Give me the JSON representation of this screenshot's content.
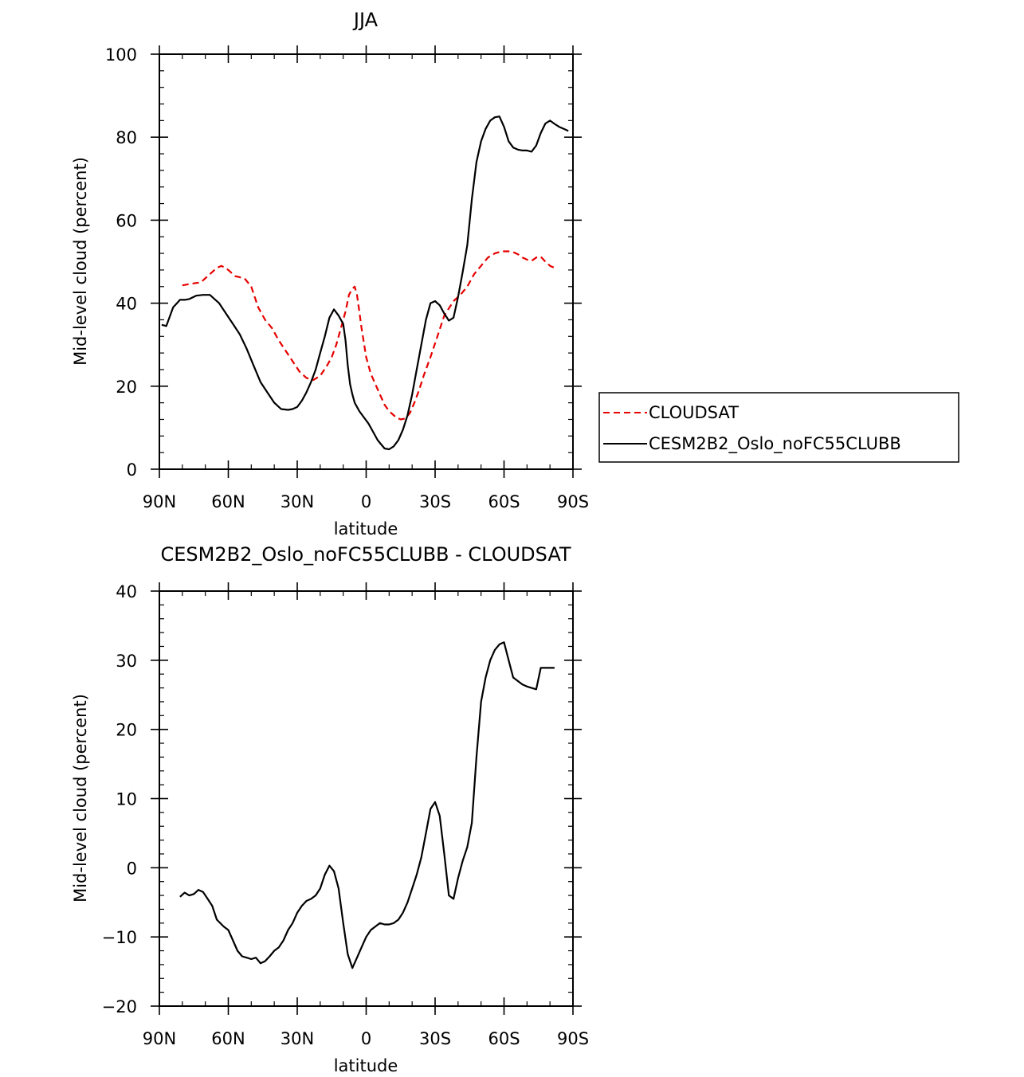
{
  "chart_data": [
    {
      "type": "line",
      "title": "JJA",
      "xlabel": "latitude",
      "ylabel": "Mid-level cloud (percent)",
      "xlim": [
        90,
        -90
      ],
      "ylim": [
        0,
        100
      ],
      "x_ticks": [
        90,
        60,
        30,
        0,
        -30,
        -60,
        -90
      ],
      "x_tick_labels": [
        "90N",
        "60N",
        "30N",
        "0",
        "30S",
        "60S",
        "90S"
      ],
      "y_ticks": [
        0,
        20,
        40,
        60,
        80,
        100
      ],
      "y_tick_labels": [
        "0",
        "20",
        "40",
        "60",
        "80",
        "100"
      ],
      "grid": false,
      "legend_position": "right",
      "series": [
        {
          "name": "CLOUDSAT",
          "color": "#e60000",
          "dash": "dashed",
          "x": [
            80,
            76,
            72,
            68,
            65,
            63,
            60,
            57,
            53,
            50,
            47,
            44,
            41,
            38,
            35,
            32,
            29,
            26,
            23,
            20,
            17,
            15,
            13,
            11,
            9,
            7.5,
            6,
            5,
            4,
            3,
            2,
            0,
            -2,
            -4,
            -6,
            -8,
            -10,
            -13,
            -15,
            -17,
            -19,
            -21,
            -23,
            -25,
            -28,
            -31,
            -34,
            -38,
            -41,
            -44,
            -47,
            -50,
            -53,
            -56,
            -59,
            -62,
            -64,
            -66,
            -68,
            -70,
            -72,
            -74,
            -76,
            -78,
            -80,
            -82
          ],
          "y": [
            44.3,
            44.7,
            45.0,
            47.0,
            48.5,
            49.0,
            48.0,
            46.5,
            46.0,
            44.0,
            39.0,
            36.0,
            34.0,
            31.0,
            28.5,
            26.0,
            23.5,
            22.0,
            21.5,
            22.5,
            25.0,
            27.0,
            30.0,
            34.0,
            38.0,
            42.0,
            43.5,
            44.0,
            42.0,
            38.0,
            34.0,
            27.0,
            23.0,
            20.5,
            18.0,
            15.5,
            14.0,
            12.5,
            12.0,
            12.2,
            13.5,
            16.0,
            19.0,
            22.5,
            27.0,
            32.0,
            37.0,
            40.5,
            42.0,
            44.0,
            47.0,
            49.0,
            51.0,
            52.0,
            52.5,
            52.5,
            52.3,
            51.8,
            51.0,
            50.5,
            50.2,
            51.0,
            51.2,
            50.0,
            49.0,
            48.5
          ]
        },
        {
          "name": "CESM2B2_Oslo_noFC55CLUBB",
          "color": "#000000",
          "dash": "solid",
          "x": [
            89,
            87,
            84,
            81,
            79,
            77,
            74,
            71,
            68,
            66,
            64,
            61,
            58,
            55,
            52,
            49,
            46,
            43,
            40,
            37,
            34,
            32,
            30,
            28,
            26,
            24,
            22,
            20,
            18,
            16,
            14,
            12,
            10,
            9,
            8,
            7,
            6,
            5,
            3,
            1,
            -1,
            -3,
            -5,
            -8,
            -10,
            -12,
            -14,
            -16,
            -18,
            -20,
            -22,
            -24,
            -26,
            -28,
            -30,
            -32,
            -34,
            -36,
            -38,
            -40,
            -42,
            -44,
            -46,
            -48,
            -50,
            -52,
            -54,
            -56,
            -58,
            -60,
            -62,
            -64,
            -66,
            -68,
            -70,
            -72,
            -74,
            -76,
            -78,
            -80,
            -82,
            -84,
            -86,
            -88
          ],
          "y": [
            34.8,
            34.5,
            39.0,
            40.8,
            40.8,
            41.0,
            41.8,
            42.0,
            42.0,
            41.0,
            40.0,
            37.5,
            35.0,
            32.5,
            29.0,
            25.0,
            21.0,
            18.5,
            16.0,
            14.5,
            14.3,
            14.5,
            15.0,
            16.5,
            18.5,
            21.0,
            24.0,
            28.0,
            32.0,
            36.5,
            38.5,
            37.0,
            35.0,
            31.0,
            25.0,
            20.5,
            18.0,
            16.0,
            14.0,
            12.5,
            11.0,
            9.0,
            7.0,
            5.0,
            4.8,
            5.5,
            7.0,
            9.5,
            13.0,
            18.0,
            24.0,
            30.0,
            36.0,
            40.0,
            40.5,
            39.5,
            37.5,
            35.8,
            36.5,
            41.5,
            47.5,
            54.0,
            65.0,
            74.0,
            79.0,
            82.0,
            84.0,
            84.8,
            85.0,
            82.5,
            79.0,
            77.5,
            77.0,
            76.8,
            76.8,
            76.5,
            78.0,
            81.0,
            83.3,
            84.0,
            83.2,
            82.5,
            82.0,
            81.5
          ]
        }
      ]
    },
    {
      "type": "line",
      "title": "CESM2B2_Oslo_noFC55CLUBB - CLOUDSAT",
      "xlabel": "latitude",
      "ylabel": "Mid-level cloud (percent)",
      "xlim": [
        90,
        -90
      ],
      "ylim": [
        -20,
        40
      ],
      "x_ticks": [
        90,
        60,
        30,
        0,
        -30,
        -60,
        -90
      ],
      "x_tick_labels": [
        "90N",
        "60N",
        "30N",
        "0",
        "30S",
        "60S",
        "90S"
      ],
      "y_ticks": [
        -20,
        -10,
        0,
        10,
        20,
        30,
        40
      ],
      "y_tick_labels": [
        "−20",
        "−10",
        "0",
        "10",
        "20",
        "30",
        "40"
      ],
      "grid": false,
      "series": [
        {
          "color": "#000000",
          "dash": "solid",
          "x": [
            81,
            79,
            77,
            75,
            73,
            71,
            69,
            67,
            65,
            62,
            60,
            58,
            56,
            54,
            52,
            50,
            48,
            46,
            44,
            42,
            40,
            38,
            36,
            34,
            32,
            30,
            28,
            26,
            24,
            22,
            20,
            18,
            16,
            14,
            12,
            10,
            8,
            6,
            4,
            2,
            0,
            -2,
            -4,
            -6,
            -8,
            -10,
            -12,
            -14,
            -16,
            -18,
            -20,
            -22,
            -24,
            -26,
            -28,
            -30,
            -32,
            -34,
            -36,
            -38,
            -40,
            -42,
            -44,
            -46,
            -48,
            -50,
            -52,
            -54,
            -56,
            -58,
            -60,
            -62,
            -64,
            -66,
            -68,
            -70,
            -72,
            -74,
            -76,
            -78,
            -80,
            -82
          ],
          "y": [
            -4.2,
            -3.6,
            -4.0,
            -3.8,
            -3.2,
            -3.5,
            -4.5,
            -5.5,
            -7.5,
            -8.5,
            -9.0,
            -10.5,
            -12.0,
            -12.8,
            -13.0,
            -13.2,
            -13.0,
            -13.8,
            -13.5,
            -12.8,
            -12.0,
            -11.5,
            -10.5,
            -9.0,
            -8.0,
            -6.5,
            -5.5,
            -4.8,
            -4.5,
            -4.0,
            -3.0,
            -1.0,
            0.3,
            -0.5,
            -3.0,
            -8.0,
            -12.5,
            -14.5,
            -13.0,
            -11.5,
            -10.0,
            -9.0,
            -8.5,
            -8.0,
            -8.2,
            -8.2,
            -8.0,
            -7.5,
            -6.5,
            -5.0,
            -3.0,
            -1.0,
            1.5,
            5.0,
            8.5,
            9.5,
            7.5,
            2.0,
            -4.0,
            -4.5,
            -1.5,
            1.0,
            3.0,
            6.5,
            16.0,
            24.0,
            27.5,
            30.0,
            31.5,
            32.3,
            32.6,
            30.0,
            27.5,
            27.0,
            26.5,
            26.2,
            26.0,
            25.8,
            28.9,
            28.9,
            28.9,
            28.9
          ]
        }
      ]
    }
  ]
}
